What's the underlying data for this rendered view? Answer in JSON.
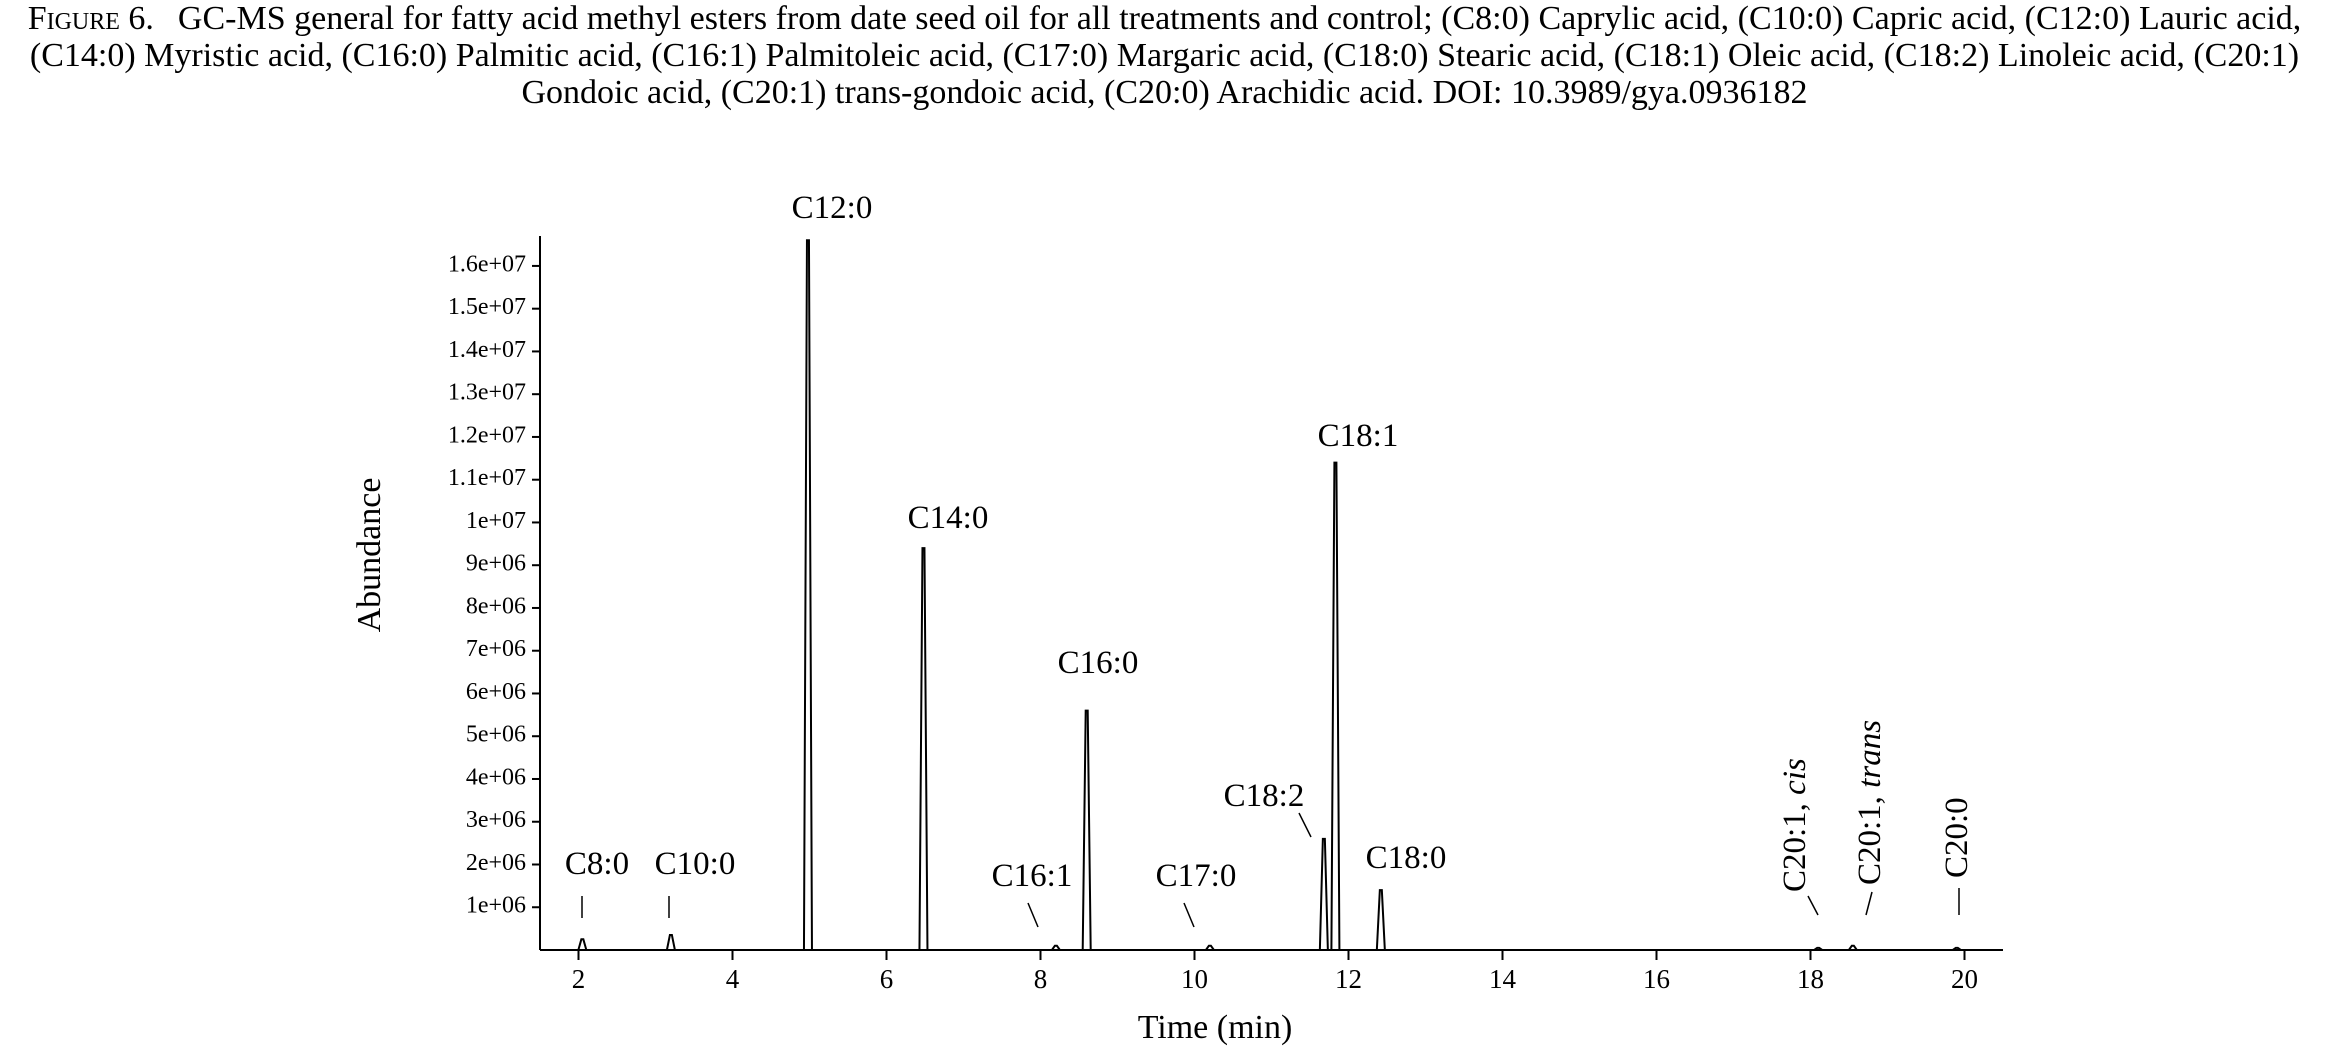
{
  "caption": {
    "label": "Figure 6.",
    "text": "GC-MS general for fatty acid methyl esters from date seed oil for all treatments and control; (C8:0) Caprylic acid, (C10:0) Capric acid, (C12:0) Lauric acid, (C14:0) Myristic acid, (C16:0) Palmitic acid, (C16:1) Palmitoleic acid, (C17:0) Margaric acid, (C18:0) Stearic acid, (C18:1) Oleic acid, (C18:2) Linoleic acid, (C20:1) Gondoic acid, (C20:1) trans-gondoic acid, (C20:0) Arachidic acid. DOI: 10.3989/gya.0936182"
  },
  "chart_data": {
    "type": "chromatogram",
    "x_label": "Time (min)",
    "y_label": "Abundance",
    "color": "#000000",
    "xlim": [
      1.5,
      20.5
    ],
    "xticks": [
      2,
      4,
      6,
      8,
      10,
      12,
      14,
      16,
      18,
      20
    ],
    "ylim": [
      0,
      16700000
    ],
    "yticks": [
      {
        "value": 1000000,
        "label": "1e+06"
      },
      {
        "value": 2000000,
        "label": "2e+06"
      },
      {
        "value": 3000000,
        "label": "3e+06"
      },
      {
        "value": 4000000,
        "label": "4e+06"
      },
      {
        "value": 5000000,
        "label": "5e+06"
      },
      {
        "value": 6000000,
        "label": "6e+06"
      },
      {
        "value": 7000000,
        "label": "7e+06"
      },
      {
        "value": 8000000,
        "label": "8e+06"
      },
      {
        "value": 9000000,
        "label": "9e+06"
      },
      {
        "value": 10000000,
        "label": "1e+07"
      },
      {
        "value": 11000000,
        "label": "1.1e+07"
      },
      {
        "value": 12000000,
        "label": "1.2e+07"
      },
      {
        "value": 13000000,
        "label": "1.3e+07"
      },
      {
        "value": 14000000,
        "label": "1.4e+07"
      },
      {
        "value": 15000000,
        "label": "1.5e+07"
      },
      {
        "value": 16000000,
        "label": "1.6e+07"
      }
    ],
    "peaks": [
      {
        "label": "C8:0",
        "time": 2.05,
        "abundance": 250000
      },
      {
        "label": "C10:0",
        "time": 3.2,
        "abundance": 350000
      },
      {
        "label": "C12:0",
        "time": 4.98,
        "abundance": 16600000
      },
      {
        "label": "C14:0",
        "time": 6.48,
        "abundance": 9400000
      },
      {
        "label": "C16:1",
        "time": 8.2,
        "abundance": 100000
      },
      {
        "label": "C16:0",
        "time": 8.6,
        "abundance": 5600000
      },
      {
        "label": "C17:0",
        "time": 10.2,
        "abundance": 100000
      },
      {
        "label": "C18:2",
        "time": 11.68,
        "abundance": 2600000
      },
      {
        "label": "C18:1",
        "time": 11.83,
        "abundance": 11400000
      },
      {
        "label": "C18:0",
        "time": 12.42,
        "abundance": 1400000
      },
      {
        "label": "C20:1,",
        "label_italic": "cis",
        "time": 18.1,
        "abundance": 50000
      },
      {
        "label": "C20:1,",
        "label_italic": "trans",
        "time": 18.55,
        "abundance": 100000
      },
      {
        "label": "C20:0",
        "time": 19.9,
        "abundance": 50000
      }
    ]
  }
}
